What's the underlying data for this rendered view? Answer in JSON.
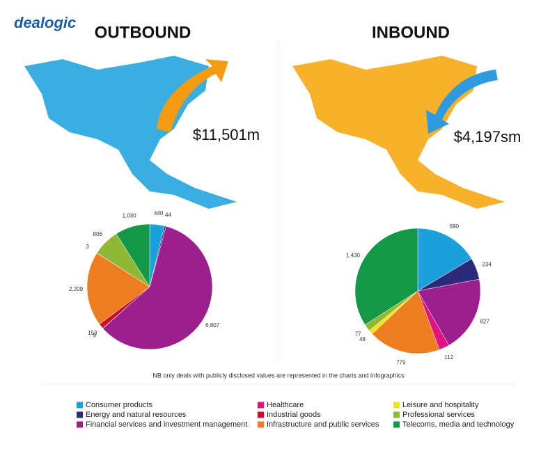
{
  "brand": "dealogic",
  "note": "NB only deals with publicly disclosed values are represented in the charts and infographics",
  "chart_data": {
    "type": "pie",
    "categories": [
      "OUTBOUND",
      "INBOUND"
    ],
    "annotations": [
      "$11,501m",
      "$4,197sm"
    ],
    "series": [
      {
        "name": "Consumer products",
        "color": "#1ba1d9",
        "values": [
          440,
          690
        ],
        "value_labels": [
          "440",
          "690"
        ]
      },
      {
        "name": "Energy and natural resources",
        "color": "#2e2a7a",
        "values": [
          44,
          234
        ],
        "value_labels": [
          "44",
          "234"
        ]
      },
      {
        "name": "Financial services and investment management",
        "color": "#9b1f8c",
        "values": [
          6807,
          827
        ],
        "value_labels": [
          "6,807",
          "827"
        ]
      },
      {
        "name": "Healthcare",
        "color": "#e4127f",
        "values": [
          9,
          112
        ],
        "value_labels": [
          "9",
          "112"
        ]
      },
      {
        "name": "Industrial goods",
        "color": "#c8102e",
        "values": [
          153,
          null
        ],
        "value_labels": [
          "153",
          null
        ]
      },
      {
        "name": "Infrastructure and public services",
        "color": "#ee7d22",
        "values": [
          2209,
          779
        ],
        "value_labels": [
          "2,209",
          "779"
        ]
      },
      {
        "name": "Leisure and hospitality",
        "color": "#f5e31c",
        "values": [
          3,
          48
        ],
        "value_labels": [
          "3",
          "48"
        ]
      },
      {
        "name": "Professional services",
        "color": "#8fb836",
        "values": [
          806,
          77
        ],
        "value_labels": [
          "806",
          "77"
        ]
      },
      {
        "name": "Telecoms, media and technology",
        "color": "#139847",
        "values": [
          1030,
          1430
        ],
        "value_labels": [
          "1,030",
          "1,430"
        ]
      }
    ]
  }
}
